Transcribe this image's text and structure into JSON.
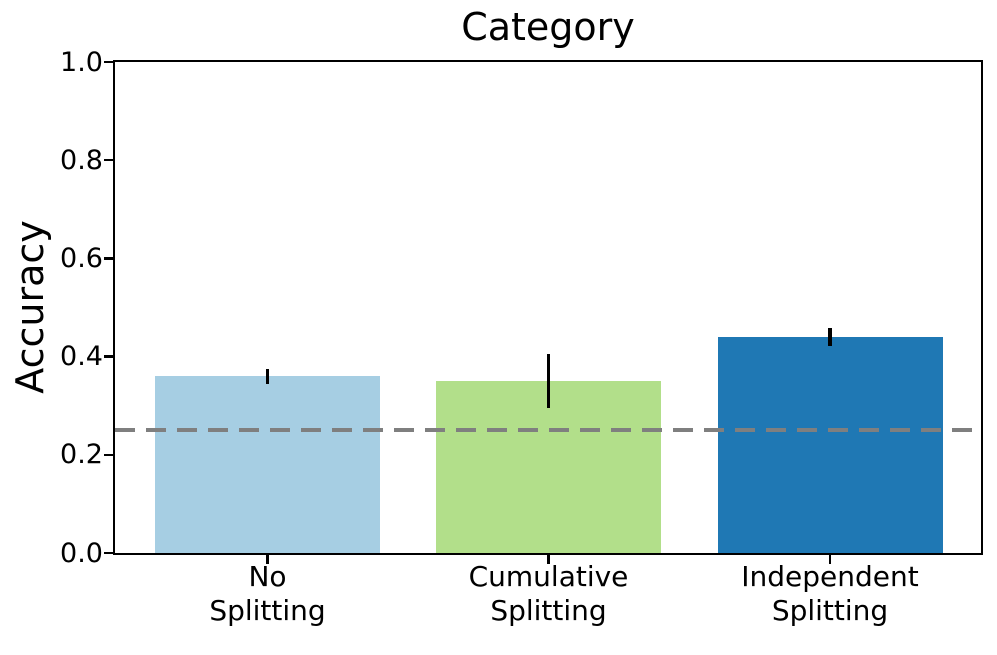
{
  "figure": {
    "background": "#ffffff",
    "text_color": "#000000",
    "axis_color": "#000000"
  },
  "chart_data": {
    "type": "bar",
    "title": "Category",
    "xlabel": "",
    "ylabel": "Accuracy",
    "categories": [
      "No\nSplitting",
      "Cumulative\nSplitting",
      "Independent\nSplitting"
    ],
    "values": [
      0.36,
      0.35,
      0.44
    ],
    "errors": [
      0.015,
      0.055,
      0.018
    ],
    "bar_colors": [
      "#a6cee3",
      "#b2df8a",
      "#1f78b4"
    ],
    "error_bar_color": "#000000",
    "ylim": [
      0.0,
      1.0
    ],
    "yticks": [
      0.0,
      0.2,
      0.4,
      0.6,
      0.8,
      1.0
    ],
    "ytick_labels": [
      "0.0",
      "0.2",
      "0.4",
      "0.6",
      "0.8",
      "1.0"
    ],
    "reference_line": {
      "value": 0.25,
      "color": "#7f7f7f",
      "style": "dashed"
    },
    "grid": false,
    "legend": null
  }
}
